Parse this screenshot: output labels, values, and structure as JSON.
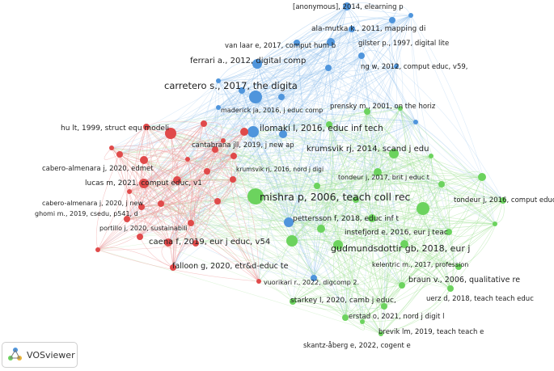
{
  "app": {
    "name": "VOSviewer"
  },
  "colors": {
    "blue": "#4f95dc",
    "green": "#6cd35e",
    "red": "#e04a4a",
    "edge_blue": "#9cc6ef",
    "edge_green": "#a6e39a",
    "edge_red": "#ef9c9c"
  },
  "labels": {
    "n1": "[anonymous], 2014, elearning p",
    "n2": "ala-mutka k., 2011, mapping di",
    "n3": "van laar e, 2017, comput hum b",
    "n4": "gilster p., 1997, digital lite",
    "n5": "ferrari a., 2012, digital comp",
    "n6": "ng w, 2012, comput educ, v59,",
    "n7": "carretero s., 2017, the digita",
    "n8": "maderick ja, 2016, j educ comp",
    "n9": "prensky m., 2001, on the horiz",
    "n10": "hu lt, 1999, struct equ modeli",
    "n11": "ilomaki l, 2016, educ inf tech",
    "n12": "cantabrana jll, 2019, j new ap",
    "n13": "krumsvik rj, 2014, scand j edu",
    "n14": "cabero-almenara j, 2020, edmet",
    "n15": "krumsvik rj, 2016, nord j digi",
    "n16": "tondeur j, 2017, brit j educ t",
    "n17": "lucas m, 2021, comput educ, v1",
    "n18": "mishra p, 2006, teach coll rec",
    "n19": "tondeur j, 2016, comput educ,",
    "n20": "cabero-almenara j, 2020, j new",
    "n21": "ghomi m., 2019, csedu, p541, d",
    "n22": "pettersson f, 2018, educ inf t",
    "n23": "instefjord e, 2016, eur j teac",
    "n24": "portillo j, 2020, sustainabili",
    "n25": "caena f, 2019, eur j educ, v54",
    "n26": "gudmundsdottir gb, 2018, eur j",
    "n27": "kelentric m., 2017, profession",
    "n28": "falloon g, 2020, etr&d-educ te",
    "n29": "braun v., 2006, qualitative re",
    "n30": "vuorikari r., 2022, digcomp 2.",
    "n31": "uerz d, 2018, teach teach educ",
    "n32": "starkey l, 2020, camb j educ,",
    "n33": "erstad o, 2021, nord j digit l",
    "n34": "brevik lm, 2019, teach teach e",
    "n35": "skantz-åberg e, 2022, cogent e"
  }
}
